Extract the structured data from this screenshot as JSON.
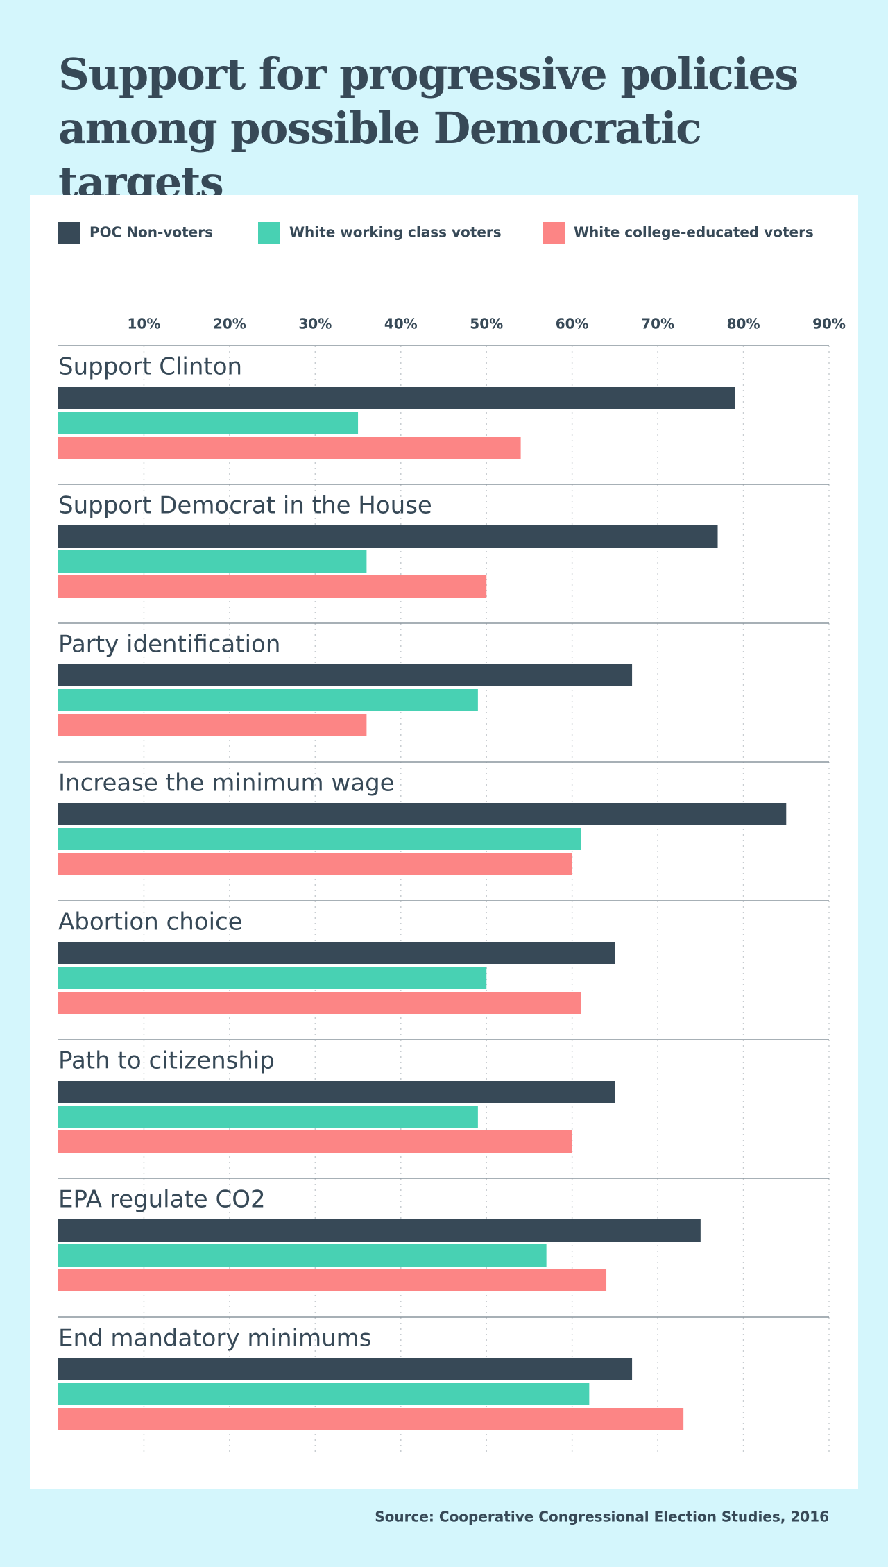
{
  "chart_data": {
    "type": "bar",
    "orientation": "horizontal",
    "title": "Support for progressive policies among possible Democratic targets",
    "source": "Source: Cooperative Congressional Election Studies, 2016",
    "categories": [
      "Support Clinton",
      "Support Democrat in the House",
      "Party identification",
      "Increase the minimum wage",
      "Abortion choice",
      "Path to citizenship",
      "EPA regulate CO2",
      "End mandatory minimums"
    ],
    "series": [
      {
        "name": "POC Non-voters",
        "color": "#374957",
        "values": [
          79,
          77,
          67,
          85,
          65,
          65,
          75,
          67
        ]
      },
      {
        "name": "White working class voters",
        "color": "#48d1b3",
        "values": [
          35,
          36,
          49,
          61,
          50,
          49,
          57,
          62
        ]
      },
      {
        "name": "White college-educated voters",
        "color": "#fc8585",
        "values": [
          54,
          50,
          36,
          60,
          61,
          60,
          64,
          73
        ]
      }
    ],
    "xlim": [
      0,
      90
    ],
    "xticks": [
      {
        "value": 10,
        "label": "10%"
      },
      {
        "value": 20,
        "label": "20%"
      },
      {
        "value": 30,
        "label": "30%"
      },
      {
        "value": 40,
        "label": "40%"
      },
      {
        "value": 50,
        "label": "50%"
      },
      {
        "value": 60,
        "label": "60%"
      },
      {
        "value": 70,
        "label": "70%"
      },
      {
        "value": 80,
        "label": "80%"
      },
      {
        "value": 90,
        "label": "90%"
      }
    ],
    "grid": true
  }
}
